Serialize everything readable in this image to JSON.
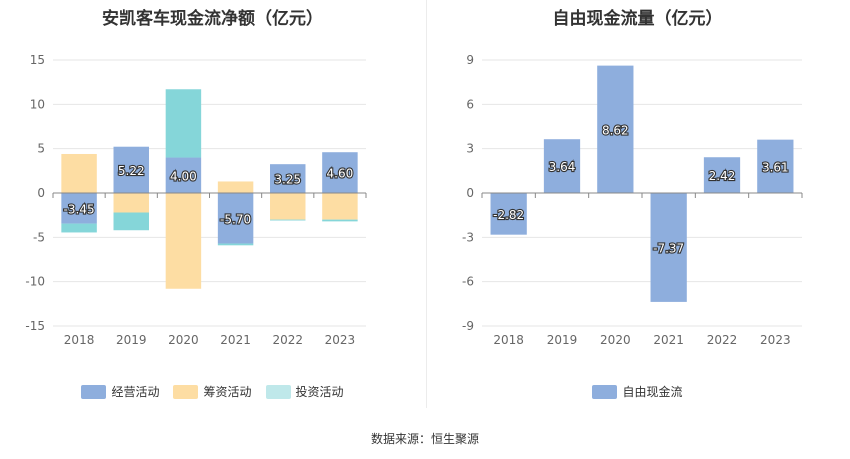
{
  "source_text": "数据来源：恒生聚源",
  "chart_data": [
    {
      "type": "bar",
      "stacked": true,
      "title": "安凯客车现金流净额（亿元）",
      "categories": [
        "2018",
        "2019",
        "2020",
        "2021",
        "2022",
        "2023"
      ],
      "ylim": [
        -15,
        15
      ],
      "yticks": [
        15,
        10,
        5,
        0,
        -5,
        -10,
        -15
      ],
      "grid": true,
      "legend_position": "bottom",
      "series": [
        {
          "name": "经营活动",
          "color": "#8eaedd",
          "values": [
            -3.45,
            5.22,
            4.0,
            -5.7,
            3.25,
            4.6
          ],
          "labels": [
            "-3.45",
            "5.22",
            "4.00",
            "-5.70",
            "3.25",
            "4.60"
          ]
        },
        {
          "name": "筹资活动",
          "color": "#fddda3",
          "values": [
            4.4,
            -2.2,
            -10.8,
            1.3,
            -3.0,
            -3.0
          ]
        },
        {
          "name": "投资活动",
          "color": "#85d6d9",
          "values": [
            -1.0,
            -2.0,
            7.7,
            -0.2,
            -0.1,
            -0.2
          ]
        }
      ]
    },
    {
      "type": "bar",
      "title": "自由现金流量（亿元）",
      "categories": [
        "2018",
        "2019",
        "2020",
        "2021",
        "2022",
        "2023"
      ],
      "ylim": [
        -9,
        9
      ],
      "yticks": [
        9,
        6,
        3,
        0,
        -3,
        -6,
        -9
      ],
      "grid": true,
      "legend_position": "bottom",
      "series": [
        {
          "name": "自由现金流",
          "color": "#8eaedd",
          "values": [
            -2.82,
            3.64,
            8.62,
            -7.37,
            2.42,
            3.61
          ],
          "labels": [
            "-2.82",
            "3.64",
            "8.62",
            "-7.37",
            "2.42",
            "3.61"
          ]
        }
      ]
    }
  ]
}
